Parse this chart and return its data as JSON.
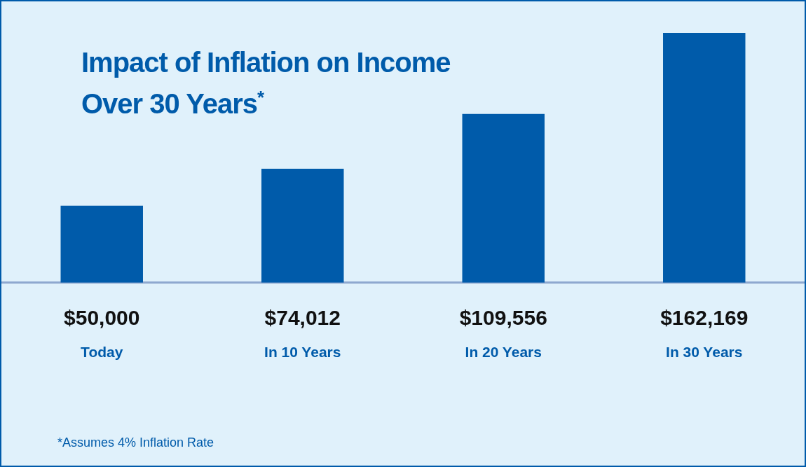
{
  "chart_data": {
    "type": "bar",
    "title": "Impact of Inflation on Income\nOver 30 Years$^{*}$",
    "categories": [
      "Today",
      "In 10 Years",
      "In 20 Years",
      "In 30 Years"
    ],
    "values": [
      50000,
      74012,
      109556,
      162169
    ],
    "value_labels": [
      "$50,000",
      "$74,012",
      "$109,556",
      "$162,169"
    ],
    "color": "#005baa",
    "annotations": [
      "*Assumes 4% Inflation Rate"
    ]
  }
}
